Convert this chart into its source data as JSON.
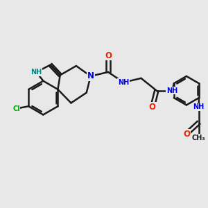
{
  "bg_color": "#e8e8e8",
  "bond_color": "#1a1a1a",
  "bond_width": 1.8,
  "N_color": "#0000ee",
  "O_color": "#ee2200",
  "Cl_color": "#00aa00",
  "NH_color": "#008888",
  "font_size_atom": 8.5,
  "font_size_small": 7.0,
  "xlim": [
    0,
    10
  ],
  "ylim": [
    0,
    10
  ]
}
